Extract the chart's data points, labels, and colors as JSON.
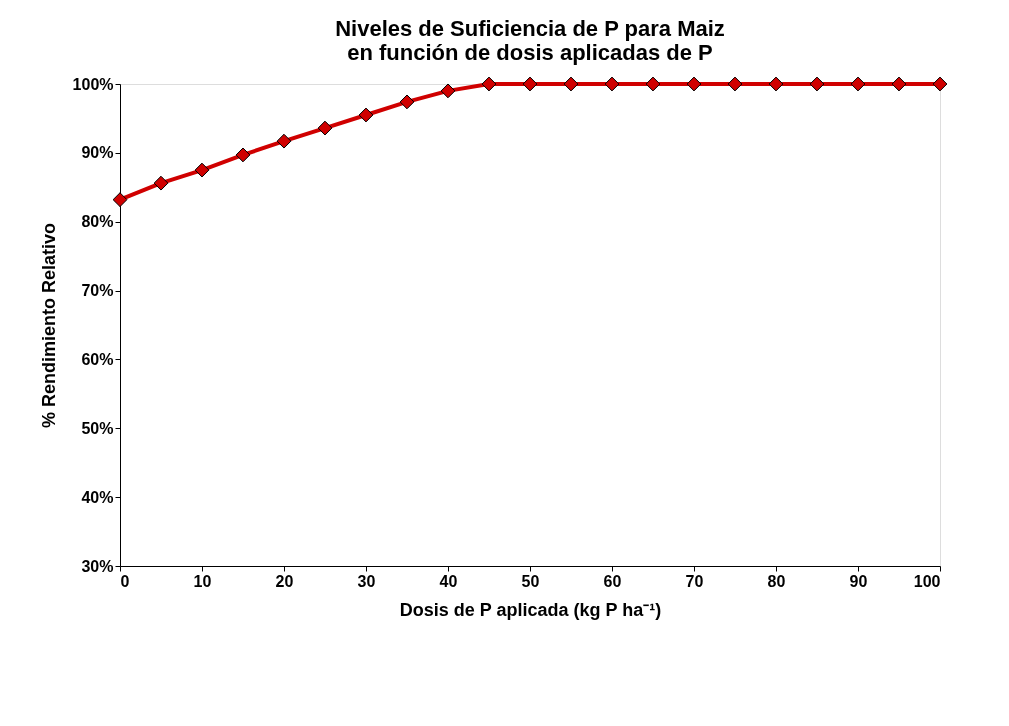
{
  "chart_data": {
    "type": "line",
    "title": "Niveles de Suficiencia de P para Maiz\nen función de dosis aplicadas de P",
    "xlabel": "Dosis de P aplicada  (kg P ha⁻¹)",
    "ylabel": "% Rendimiento  Relativo",
    "x": [
      0,
      5,
      10,
      15,
      20,
      25,
      30,
      35,
      40,
      45,
      50,
      55,
      60,
      65,
      70,
      75,
      80,
      85,
      90,
      95,
      100
    ],
    "series": [
      {
        "color": "#d00000",
        "values": [
          83.2,
          85.6,
          87.5,
          89.7,
          91.7,
          93.6,
          95.5,
          97.4,
          99.0,
          100,
          100,
          100,
          100,
          100,
          100,
          100,
          100,
          100,
          100,
          100,
          100
        ]
      }
    ],
    "xlim": [
      0,
      100
    ],
    "xticks": [
      0,
      10,
      20,
      30,
      40,
      50,
      60,
      70,
      80,
      90,
      100
    ],
    "ylim": [
      30,
      100
    ],
    "yticks": [
      {
        "value": 30,
        "label": "30%"
      },
      {
        "value": 40,
        "label": "40%"
      },
      {
        "value": 50,
        "label": "50%"
      },
      {
        "value": 60,
        "label": "60%"
      },
      {
        "value": 70,
        "label": "70%"
      },
      {
        "value": 80,
        "label": "80%"
      },
      {
        "value": 90,
        "label": "90%"
      },
      {
        "value": 100,
        "label": "100%"
      }
    ],
    "marker": "diamond",
    "line_style": "solid",
    "grid": false
  }
}
